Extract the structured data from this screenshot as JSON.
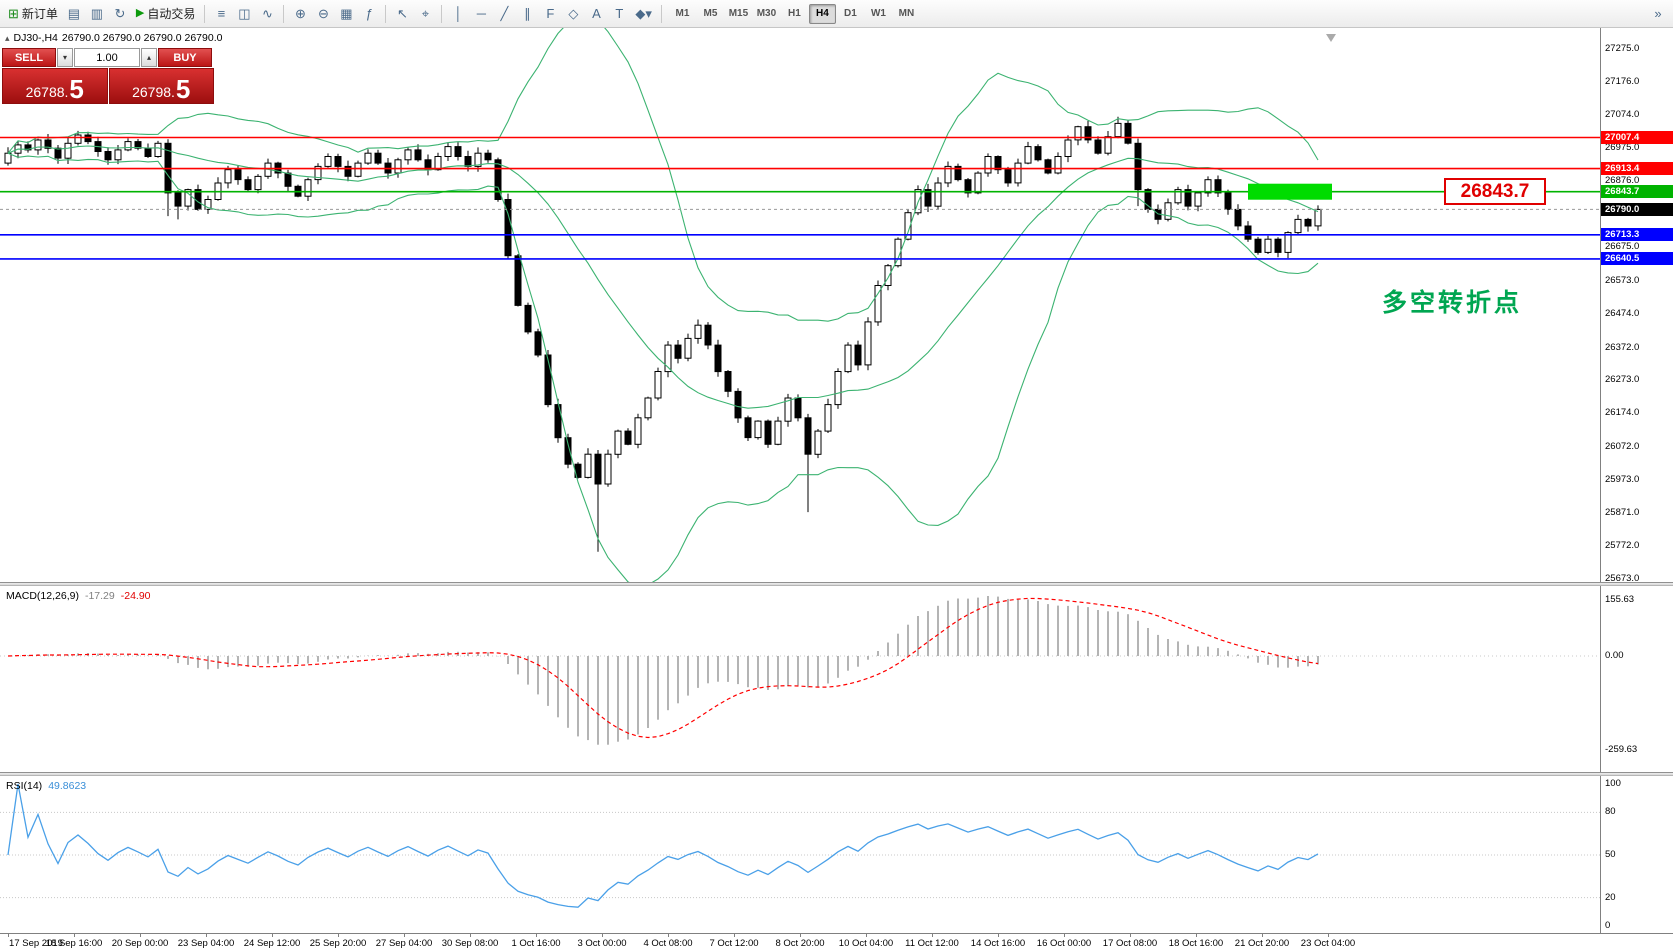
{
  "toolbar": {
    "new_order_label": "新订单",
    "autotrading_label": "自动交易",
    "timeframes": [
      "M1",
      "M5",
      "M15",
      "M30",
      "H1",
      "H4",
      "D1",
      "W1",
      "MN"
    ],
    "active_timeframe": "H4",
    "overflow_label": "»"
  },
  "icons": {
    "new_order": "⊞",
    "profiles": "▤",
    "market_watch": "▥",
    "refresh": "↻",
    "autotrading_play": "▶",
    "bar_chart": "≡",
    "candle_chart": "◫",
    "line_chart": "∿",
    "zoom_in": "⊕",
    "zoom_out": "⊖",
    "tile": "▦",
    "indicators": "ƒ",
    "cursor": "↖",
    "crosshair": "⌖",
    "vline": "│",
    "hline": "─",
    "trendline": "╱",
    "channel": "∥",
    "fibo": "F",
    "shapes": "◇",
    "text": "A",
    "label": "T",
    "arrows": "◆",
    "caret_down": "▾",
    "caret_up": "▴",
    "one_click_toggle": "▴"
  },
  "chart_header": {
    "symbol_period": "DJ30-,H4",
    "ohlc": "26790.0 26790.0 26790.0 26790.0"
  },
  "one_click": {
    "sell_label": "SELL",
    "buy_label": "BUY",
    "lot": "1.00",
    "sell_price": "26788.5",
    "buy_price": "26798.5"
  },
  "annotations": {
    "price_callout": "26843.7",
    "note": "多空转折点"
  },
  "price_axis": {
    "labels": [
      "27275.0",
      "27176.0",
      "27074.0",
      "26975.0",
      "26876.0",
      "26777.0",
      "26675.0",
      "26573.0",
      "26474.0",
      "26372.0",
      "26273.0",
      "26174.0",
      "26072.0",
      "25973.0",
      "25871.0",
      "25772.0",
      "25673.0"
    ]
  },
  "levels": [
    {
      "value": 27007.4,
      "label": "27007.4",
      "color": "#ff0000"
    },
    {
      "value": 26913.4,
      "label": "26913.4",
      "color": "#ff0000"
    },
    {
      "value": 26843.7,
      "label": "26843.7",
      "color": "#00b300"
    },
    {
      "value": 26713.3,
      "label": "26713.3",
      "color": "#0000ff"
    },
    {
      "value": 26640.5,
      "label": "26640.5",
      "color": "#0000ff"
    }
  ],
  "current_price": {
    "value": 26790.0,
    "label": "26790.0"
  },
  "highlight": {
    "price": 26843.7,
    "color": "#00dc00"
  },
  "macd": {
    "title": "MACD(12,26,9)",
    "value_main": "-17.29",
    "value_signal": "-24.90",
    "axis": [
      "155.63",
      "0.00",
      "-259.63"
    ],
    "params": {
      "fast": 12,
      "slow": 26,
      "signal": 9
    }
  },
  "rsi": {
    "title": "RSI(14)",
    "value": "49.8623",
    "axis": [
      "100",
      "80",
      "50",
      "20",
      "0"
    ],
    "levels": [
      80,
      50,
      20
    ],
    "period": 14,
    "color": "#4aa0e8"
  },
  "date_axis": [
    "17 Sep 2019",
    "18 Sep 16:00",
    "20 Sep 00:00",
    "23 Sep 04:00",
    "24 Sep 12:00",
    "25 Sep 20:00",
    "27 Sep 04:00",
    "30 Sep 08:00",
    "1 Oct 16:00",
    "3 Oct 00:00",
    "4 Oct 08:00",
    "7 Oct 12:00",
    "8 Oct 20:00",
    "10 Oct 04:00",
    "11 Oct 12:00",
    "14 Oct 16:00",
    "16 Oct 00:00",
    "17 Oct 08:00",
    "18 Oct 16:00",
    "21 Oct 20:00",
    "23 Oct 04:00"
  ],
  "chart_data": {
    "type": "candlestick",
    "symbol": "DJ30",
    "period": "H4",
    "price_range": [
      25673.0,
      27275.0
    ],
    "x_axis": "H4 bars, 17 Sep 2019 – 23 Oct 2019",
    "overlays": {
      "bollinger": {
        "period": 20,
        "deviation": 2,
        "color": "#3cb371"
      }
    },
    "indicators": [
      "MACD(12,26,9)",
      "RSI(14)"
    ],
    "candles": {
      "first_open": 26930,
      "closes": [
        26960,
        26985,
        26970,
        27000,
        26975,
        26945,
        26990,
        27015,
        26995,
        26965,
        26940,
        26970,
        26995,
        26975,
        26950,
        26990,
        26840,
        26800,
        26850,
        26790,
        26820,
        26870,
        26910,
        26880,
        26850,
        26890,
        26930,
        26900,
        26860,
        26830,
        26880,
        26920,
        26950,
        26920,
        26890,
        26930,
        26960,
        26930,
        26900,
        26940,
        26970,
        26940,
        26910,
        26950,
        26980,
        26950,
        26920,
        26960,
        26940,
        26820,
        26650,
        26500,
        26420,
        26350,
        26200,
        26100,
        26020,
        25980,
        26050,
        25960,
        26050,
        26120,
        26080,
        26160,
        26220,
        26300,
        26380,
        26340,
        26400,
        26440,
        26380,
        26300,
        26240,
        26160,
        26100,
        26150,
        26080,
        26150,
        26220,
        26160,
        26050,
        26120,
        26200,
        26300,
        26380,
        26320,
        26450,
        26560,
        26620,
        26700,
        26780,
        26850,
        26800,
        26870,
        26920,
        26880,
        26840,
        26900,
        26950,
        26910,
        26870,
        26930,
        26980,
        26940,
        26900,
        26950,
        27000,
        27040,
        27000,
        26960,
        27010,
        27050,
        26990,
        26850,
        26790,
        26760,
        26810,
        26850,
        26800,
        26840,
        26880,
        26840,
        26790,
        26740,
        26700,
        26660,
        26700,
        26660,
        26720,
        26760,
        26740,
        26790
      ],
      "wick_overrides": {
        "16": {
          "low": 26770
        },
        "17": {
          "low": 26760
        },
        "59": {
          "low": 25755
        },
        "80": {
          "low": 25875
        },
        "111": {
          "high": 27070
        },
        "113": {
          "low": 26800
        }
      }
    }
  }
}
